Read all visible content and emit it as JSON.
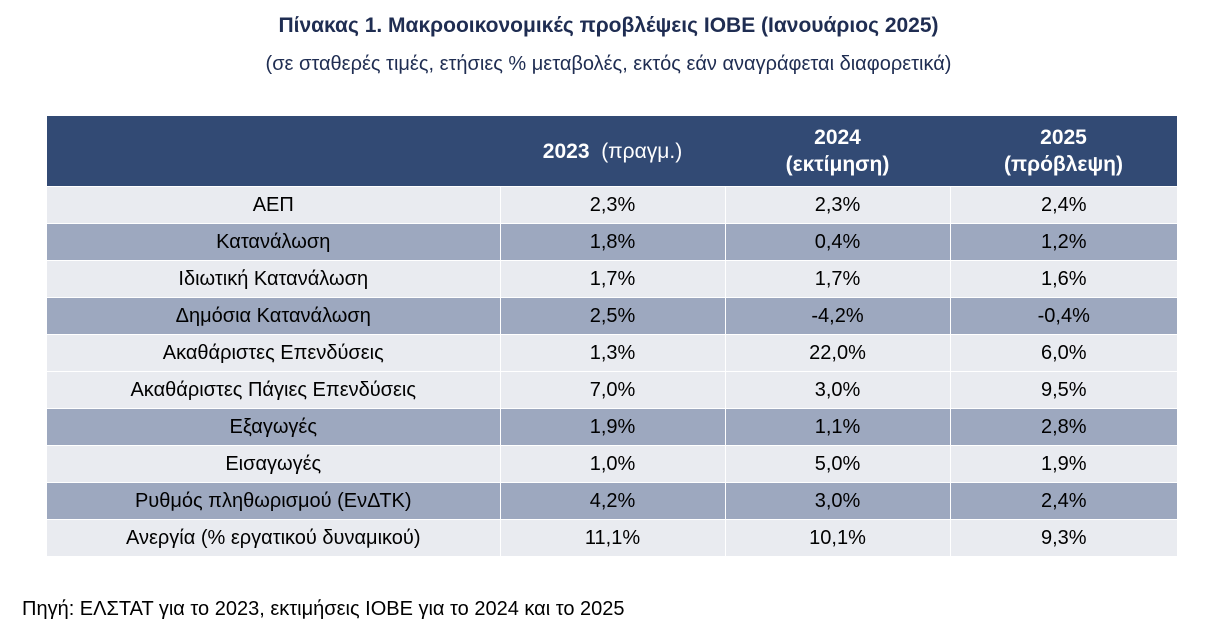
{
  "title": "Πίνακας 1. Μακροοικονομικές προβλέψεις ΙΟΒΕ (Ιανουάριος 2025)",
  "subtitle": "(σε σταθερές τιμές, ετήσιες % μεταβολές, εκτός εάν αναγράφεται διαφορετικά)",
  "table": {
    "headers": [
      {
        "year": "",
        "note": ""
      },
      {
        "year": "2023",
        "note": "(πραγμ.)"
      },
      {
        "year": "2024",
        "note": "(εκτίμηση)"
      },
      {
        "year": "2025",
        "note": "(πρόβλεψη)"
      }
    ],
    "rows": [
      {
        "label": "ΑΕΠ",
        "v2023": "2,3%",
        "v2024": "2,3%",
        "v2025": "2,4%"
      },
      {
        "label": "Κατανάλωση",
        "v2023": "1,8%",
        "v2024": "0,4%",
        "v2025": "1,2%"
      },
      {
        "label": "Ιδιωτική Κατανάλωση",
        "v2023": "1,7%",
        "v2024": "1,7%",
        "v2025": "1,6%"
      },
      {
        "label": "Δημόσια Κατανάλωση",
        "v2023": "2,5%",
        "v2024": "-4,2%",
        "v2025": "-0,4%"
      },
      {
        "label": "Ακαθάριστες Επενδύσεις",
        "v2023": "1,3%",
        "v2024": "22,0%",
        "v2025": "6,0%"
      },
      {
        "label": "Ακαθάριστες Πάγιες Επενδύσεις",
        "v2023": "7,0%",
        "v2024": "3,0%",
        "v2025": "9,5%"
      },
      {
        "label": "Εξαγωγές",
        "v2023": "1,9%",
        "v2024": "1,1%",
        "v2025": "2,8%"
      },
      {
        "label": "Εισαγωγές",
        "v2023": "1,0%",
        "v2024": "5,0%",
        "v2025": "1,9%"
      },
      {
        "label": "Ρυθμός πληθωρισμού (ΕνΔΤΚ)",
        "v2023": "4,2%",
        "v2024": "3,0%",
        "v2025": "2,4%"
      },
      {
        "label": "Ανεργία (% εργατικού δυναμικού)",
        "v2023": "11,1%",
        "v2024": "10,1%",
        "v2025": "9,3%"
      }
    ]
  },
  "source": "Πηγή: ΕΛΣΤΑΤ για το 2023, εκτιμήσεις ΙΟΒΕ για το 2024 και το 2025",
  "colors": {
    "header_bg": "#324a74",
    "row_light": "#e9ebf0",
    "row_dark": "#9da8bf",
    "title_text": "#1f2d52"
  }
}
